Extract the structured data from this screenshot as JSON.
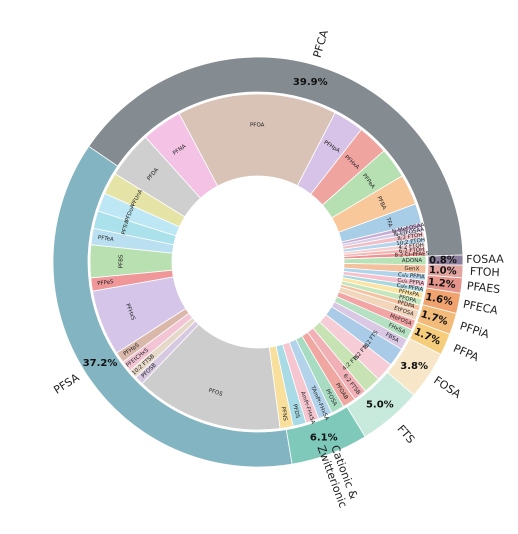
{
  "chart_data": {
    "type": "pie",
    "outer": [
      {
        "name": "PFCA",
        "value": 39.9,
        "label": "39.9%",
        "color": "#848b91"
      },
      {
        "name": "FOSAA",
        "value": 0.8,
        "label": "0.8%",
        "color": "#8a7d9c"
      },
      {
        "name": "FTOH",
        "value": 1.0,
        "label": "1.0%",
        "color": "#e3a49f"
      },
      {
        "name": "PFAES",
        "value": 1.2,
        "label": "1.2%",
        "color": "#e4948a"
      },
      {
        "name": "PFECA",
        "value": 1.6,
        "label": "1.6%",
        "color": "#f1a36f"
      },
      {
        "name": "PFPiA",
        "value": 1.7,
        "label": "1.7%",
        "color": "#f2bb79"
      },
      {
        "name": "PFPA",
        "value": 1.7,
        "label": "1.7%",
        "color": "#f6cd7a"
      },
      {
        "name": "FOSA",
        "value": 3.8,
        "label": "3.8%",
        "color": "#f7e7c8"
      },
      {
        "name": "FTS",
        "value": 5.0,
        "label": "5.0%",
        "color": "#c8eadc"
      },
      {
        "name": "Cationic & Zwitterionic",
        "value": 6.1,
        "label": "6.1%",
        "color": "#7ec9ba"
      },
      {
        "name": "PFSA",
        "value": 37.2,
        "label": "37.2%",
        "color": "#83b4c1"
      }
    ],
    "inner": [
      {
        "name": "PFOA",
        "value": 14.6,
        "group": "PFCA",
        "color": "#d9c2b6"
      },
      {
        "name": "PFHpA",
        "value": 2.8,
        "group": "PFCA",
        "color": "#d7c3e7"
      },
      {
        "name": "PFHxA",
        "value": 2.8,
        "group": "PFCA",
        "color": "#f0a4a0"
      },
      {
        "name": "PFPeA",
        "value": 2.8,
        "group": "PFCA",
        "color": "#b6e0b1"
      },
      {
        "name": "PFBA",
        "value": 2.8,
        "group": "PFCA",
        "color": "#f8c79a"
      },
      {
        "name": "TFA",
        "value": 1.8,
        "group": "PFCA",
        "color": "#a8cde6"
      },
      {
        "name": "N-MeFOSAA",
        "value": 0.4,
        "group": "FOSAA",
        "color": "#c9a9d6"
      },
      {
        "name": "N-EtFOSAA",
        "value": 0.4,
        "group": "FOSAA",
        "color": "#d5cde7"
      },
      {
        "name": "8:2 FTOH",
        "value": 0.5,
        "group": "FTOH",
        "color": "#f2bfc7"
      },
      {
        "name": "10:2 FTOH",
        "value": 0.5,
        "group": "FTOH",
        "color": "#b4d6ec"
      },
      {
        "name": "4:2 FTOH",
        "value": 0.4,
        "group": "PFAES",
        "color": "#f5cfcf"
      },
      {
        "name": "6:2 FTOH",
        "value": 0.4,
        "group": "PFAES",
        "color": "#f7b6b6"
      },
      {
        "name": "8:2 Cl-PFAES",
        "value": 0.4,
        "group": "PFAES",
        "color": "#f09090"
      },
      {
        "name": "ADONA",
        "value": 0.8,
        "group": "PFECA",
        "color": "#b8e3b8"
      },
      {
        "name": "GenX",
        "value": 0.8,
        "group": "PFECA",
        "color": "#f4c19e"
      },
      {
        "name": "C₆/₆ PFPiA",
        "value": 0.6,
        "group": "PFPiA",
        "color": "#b0d4ec"
      },
      {
        "name": "C₆/₈ PFPiA",
        "value": 0.6,
        "group": "PFPiA",
        "color": "#f6c0cd"
      },
      {
        "name": "C₈/₈ PFPiA",
        "value": 0.5,
        "group": "PFPiA",
        "color": "#a8d9e0"
      },
      {
        "name": "PFHxPA",
        "value": 0.6,
        "group": "PFPA",
        "color": "#fbe4a4"
      },
      {
        "name": "PFOPA",
        "value": 0.6,
        "group": "PFPA",
        "color": "#c5e6bd"
      },
      {
        "name": "PFDPA",
        "value": 0.5,
        "group": "PFPA",
        "color": "#f4c2a0"
      },
      {
        "name": "EtFOSA",
        "value": 0.9,
        "group": "FOSA",
        "color": "#f2d6bb"
      },
      {
        "name": "MeFOSA",
        "value": 0.9,
        "group": "FOSA",
        "color": "#f3a5a6"
      },
      {
        "name": "FHxSA",
        "value": 1.0,
        "group": "FOSA",
        "color": "#b5e0c1"
      },
      {
        "name": "FBSA",
        "value": 1.0,
        "group": "FOSA",
        "color": "#d9c7e4"
      },
      {
        "name": "8:2 FTS",
        "value": 1.7,
        "group": "FTS",
        "color": "#a9cbe7"
      },
      {
        "name": "6:2 FTS",
        "value": 1.7,
        "group": "FTS",
        "color": "#f6cdd7"
      },
      {
        "name": "4:2 FTS",
        "value": 1.6,
        "group": "FTS",
        "color": "#c7e3b3"
      },
      {
        "name": "6:2 FTSB",
        "value": 1.2,
        "group": "Cationic & Zwitterionic",
        "color": "#f1b0b6"
      },
      {
        "name": "PFOAB",
        "value": 1.2,
        "group": "Cationic & Zwitterionic",
        "color": "#f0a7a1"
      },
      {
        "name": "PFOSA",
        "value": 1.2,
        "group": "Cationic & Zwitterionic",
        "color": "#a7dbc2"
      },
      {
        "name": "TAmPr-FHxSA",
        "value": 1.3,
        "group": "Cationic & Zwitterionic",
        "color": "#b3d3ea"
      },
      {
        "name": "AmPr-FHxSA",
        "value": 1.2,
        "group": "Cationic & Zwitterionic",
        "color": "#f6c6d0"
      },
      {
        "name": "PFDS",
        "value": 1.2,
        "group": "PFSA",
        "color": "#a9dbe6"
      },
      {
        "name": "PFNS",
        "value": 1.2,
        "group": "PFSA",
        "color": "#f9df9c"
      },
      {
        "name": "PFOS",
        "value": 13.5,
        "group": "PFSA",
        "color": "#cdcdcd"
      },
      {
        "name": "PFOSB",
        "value": 0.8,
        "group": "PFSA",
        "color": "#d6c8e0"
      },
      {
        "name": "10:2 FTSB",
        "value": 0.8,
        "group": "PFSA",
        "color": "#e5d8c7"
      },
      {
        "name": "PFEtCHxS",
        "value": 1.0,
        "group": "PFSA",
        "color": "#f2c4d4"
      },
      {
        "name": "PFHpS",
        "value": 1.0,
        "group": "PFSA",
        "color": "#d9b7a9"
      },
      {
        "name": "PFHxS",
        "value": 6.0,
        "group": "PFSA",
        "color": "#d5c5e8"
      },
      {
        "name": "PFPeS",
        "value": 1.2,
        "group": "PFSA",
        "color": "#f0979a"
      },
      {
        "name": "PFBS",
        "value": 3.0,
        "group": "PFSA",
        "color": "#b8e0b0"
      },
      {
        "name": "PFTeA",
        "value": 1.5,
        "group": "PFSA",
        "color": "#b9dff0"
      },
      {
        "name": "PFTrA",
        "value": 1.6,
        "group": "PFSA",
        "color": "#abe1ea"
      },
      {
        "name": "PFDoA",
        "value": 1.7,
        "group": "PFCA",
        "color": "#bde7f5"
      },
      {
        "name": "PFUnA",
        "value": 2.0,
        "group": "PFCA",
        "color": "#e5e4a6"
      },
      {
        "name": "PFDA",
        "value": 4.3,
        "group": "PFCA",
        "color": "#cfcfcf"
      },
      {
        "name": "PFNA",
        "value": 3.7,
        "group": "PFCA",
        "color": "#f4c2e5"
      }
    ]
  }
}
